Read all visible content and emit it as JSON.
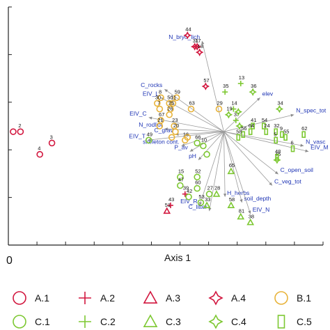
{
  "chart_data": {
    "type": "scatter",
    "xlabel": "Axis 1",
    "x_tick_labels": [
      "0"
    ],
    "groups": [
      {
        "name": "A.1",
        "marker": "circle",
        "color": "#d2173f",
        "points": [
          {
            "x": 0.4,
            "y": 2.0,
            "label": ""
          },
          {
            "x": 1.0,
            "y": 2.0,
            "label": "2"
          },
          {
            "x": 3.6,
            "y": 1.8,
            "label": "3"
          },
          {
            "x": 2.6,
            "y": 1.6,
            "label": "4"
          }
        ]
      },
      {
        "name": "A.2",
        "marker": "plus",
        "color": "#d2173f",
        "points": [
          {
            "x": 13.4,
            "y": 0.7,
            "label": "43"
          },
          {
            "x": 14.6,
            "y": 0.9,
            "label": "39"
          }
        ]
      },
      {
        "name": "A.3",
        "marker": "triangle",
        "color": "#d2173f",
        "points": [
          {
            "x": 13.1,
            "y": 0.6,
            "label": "51"
          }
        ]
      },
      {
        "name": "A.4",
        "marker": "star4",
        "color": "#d2173f",
        "points": [
          {
            "x": 14.8,
            "y": 3.7,
            "label": "44"
          },
          {
            "x": 15.6,
            "y": 3.5,
            "label": "17"
          },
          {
            "x": 15.4,
            "y": 3.5,
            "label": "31"
          },
          {
            "x": 15.8,
            "y": 3.4,
            "label": "18"
          },
          {
            "x": 16.3,
            "y": 2.8,
            "label": "57"
          }
        ]
      },
      {
        "name": "B.1",
        "marker": "circle",
        "color": "#e8b33a",
        "points": [
          {
            "x": 12.6,
            "y": 2.6,
            "label": "8"
          },
          {
            "x": 13.9,
            "y": 2.6,
            "label": "59"
          },
          {
            "x": 13.3,
            "y": 2.5,
            "label": "50"
          },
          {
            "x": 13.6,
            "y": 2.5,
            "label": "11"
          },
          {
            "x": 12.3,
            "y": 2.5,
            "label": "30"
          },
          {
            "x": 12.5,
            "y": 2.4,
            "label": "7"
          },
          {
            "x": 13.4,
            "y": 2.4,
            "label": "25"
          },
          {
            "x": 13.3,
            "y": 2.3,
            "label": "26"
          },
          {
            "x": 15.1,
            "y": 2.4,
            "label": "63"
          },
          {
            "x": 17.4,
            "y": 2.4,
            "label": "29"
          },
          {
            "x": 12.6,
            "y": 2.2,
            "label": "67"
          },
          {
            "x": 13.7,
            "y": 2.1,
            "label": "23"
          },
          {
            "x": 12.5,
            "y": 2.1,
            "label": "21"
          },
          {
            "x": 13.8,
            "y": 2.0,
            "label": "20"
          },
          {
            "x": 13.5,
            "y": 1.9,
            "label": ""
          },
          {
            "x": 14.6,
            "y": 1.85,
            "label": "16"
          },
          {
            "x": 14.8,
            "y": 1.9,
            "label": ""
          }
        ]
      },
      {
        "name": "C.1",
        "marker": "circle",
        "color": "#7dc832",
        "points": [
          {
            "x": 11.6,
            "y": 1.85,
            "label": "49"
          },
          {
            "x": 15.6,
            "y": 1.8,
            "label": "66"
          },
          {
            "x": 16.1,
            "y": 1.75,
            "label": "10"
          },
          {
            "x": 16.4,
            "y": 1.6,
            "label": ""
          },
          {
            "x": 14.2,
            "y": 1.2,
            "label": "15"
          },
          {
            "x": 14.2,
            "y": 1.05,
            "label": "47"
          },
          {
            "x": 15.6,
            "y": 1.2,
            "label": "52"
          },
          {
            "x": 15.6,
            "y": 1.0,
            "label": "60"
          },
          {
            "x": 16.6,
            "y": 0.9,
            "label": "27"
          },
          {
            "x": 14.9,
            "y": 0.85,
            "label": "42"
          },
          {
            "x": 15.9,
            "y": 0.75,
            "label": "53"
          }
        ]
      },
      {
        "name": "C.2",
        "marker": "plus",
        "color": "#7dc832",
        "points": [
          {
            "x": 19.2,
            "y": 2.85,
            "label": "13"
          },
          {
            "x": 17.9,
            "y": 2.7,
            "label": "35"
          },
          {
            "x": 18.6,
            "y": 2.4,
            "label": "14"
          },
          {
            "x": 18.8,
            "y": 2.2,
            "label": "37"
          }
        ]
      },
      {
        "name": "C.3",
        "marker": "triangle",
        "color": "#7dc832",
        "points": [
          {
            "x": 18.4,
            "y": 1.3,
            "label": "65"
          },
          {
            "x": 17.2,
            "y": 0.9,
            "label": "28"
          },
          {
            "x": 16.4,
            "y": 0.7,
            "label": "33"
          },
          {
            "x": 18.4,
            "y": 0.7,
            "label": "58"
          },
          {
            "x": 19.2,
            "y": 0.5,
            "label": "81"
          },
          {
            "x": 20.0,
            "y": 0.4,
            "label": "38"
          }
        ]
      },
      {
        "name": "C.4",
        "marker": "star4",
        "color": "#7dc832",
        "points": [
          {
            "x": 20.2,
            "y": 2.7,
            "label": "36"
          },
          {
            "x": 18.2,
            "y": 2.3,
            "label": "19"
          },
          {
            "x": 19.1,
            "y": 2.1,
            "label": ""
          },
          {
            "x": 19.0,
            "y": 2.35,
            "label": ""
          },
          {
            "x": 22.4,
            "y": 2.4,
            "label": "34"
          },
          {
            "x": 22.2,
            "y": 1.5,
            "label": "45"
          }
        ]
      },
      {
        "name": "C.5",
        "marker": "rect",
        "color": "#7dc832",
        "points": [
          {
            "x": 20.2,
            "y": 2.1,
            "label": "41"
          },
          {
            "x": 21.1,
            "y": 2.1,
            "label": "54"
          },
          {
            "x": 20.0,
            "y": 2.0,
            "label": "64"
          },
          {
            "x": 19.4,
            "y": 1.95,
            "label": "56"
          },
          {
            "x": 21.3,
            "y": 2.0,
            "label": "24"
          },
          {
            "x": 19.0,
            "y": 1.9,
            "label": "58"
          },
          {
            "x": 22.1,
            "y": 2.0,
            "label": "32"
          },
          {
            "x": 22.6,
            "y": 1.95,
            "label": "9"
          },
          {
            "x": 22.9,
            "y": 1.9,
            "label": "55"
          },
          {
            "x": 22.1,
            "y": 1.85,
            "label": "5"
          },
          {
            "x": 24.4,
            "y": 1.95,
            "label": "62"
          },
          {
            "x": 23.5,
            "y": 1.7,
            "label": "6"
          },
          {
            "x": 22.2,
            "y": 1.55,
            "label": "48"
          }
        ]
      }
    ],
    "vectors": [
      {
        "label": "N_bryo_lich",
        "x": 16.0,
        "y": 3.6
      },
      {
        "label": "C_rocks",
        "x": 12.9,
        "y": 2.75
      },
      {
        "label": "EIV_L",
        "x": 12.6,
        "y": 2.6
      },
      {
        "label": "EIV_C",
        "x": 11.6,
        "y": 2.25
      },
      {
        "label": "N_rodliot",
        "x": 12.9,
        "y": 2.05
      },
      {
        "label": "C_grav",
        "x": 13.8,
        "y": 1.95
      },
      {
        "label": "EIV_T",
        "x": 11.5,
        "y": 1.85
      },
      {
        "label": "skeleton cont.",
        "x": 14.3,
        "y": 1.75
      },
      {
        "label": "P_av",
        "x": 15.0,
        "y": 1.65
      },
      {
        "label": "pH",
        "x": 15.7,
        "y": 1.5
      },
      {
        "label": "EIV_R",
        "x": 15.8,
        "y": 0.7
      },
      {
        "label": "C_litter",
        "x": 16.6,
        "y": 0.6
      },
      {
        "label": "H_herbs",
        "x": 17.9,
        "y": 0.85
      },
      {
        "label": "soil_depth",
        "x": 19.3,
        "y": 0.75
      },
      {
        "label": "EIV_N",
        "x": 20.0,
        "y": 0.55
      },
      {
        "label": "C_veg_tot",
        "x": 21.8,
        "y": 1.05
      },
      {
        "label": "C_open_soil",
        "x": 22.3,
        "y": 1.25
      },
      {
        "label": "N_vasc",
        "x": 24.4,
        "y": 1.75
      },
      {
        "label": "EIV_M",
        "x": 24.8,
        "y": 1.65
      },
      {
        "label": "N_spec_tot",
        "x": 23.6,
        "y": 2.3
      },
      {
        "label": "elev",
        "x": 20.8,
        "y": 2.6
      }
    ],
    "origin": {
      "x": 17.8,
      "y": 2.0
    },
    "xlim": [
      0,
      26
    ],
    "ylim": [
      0,
      4.2
    ]
  }
}
